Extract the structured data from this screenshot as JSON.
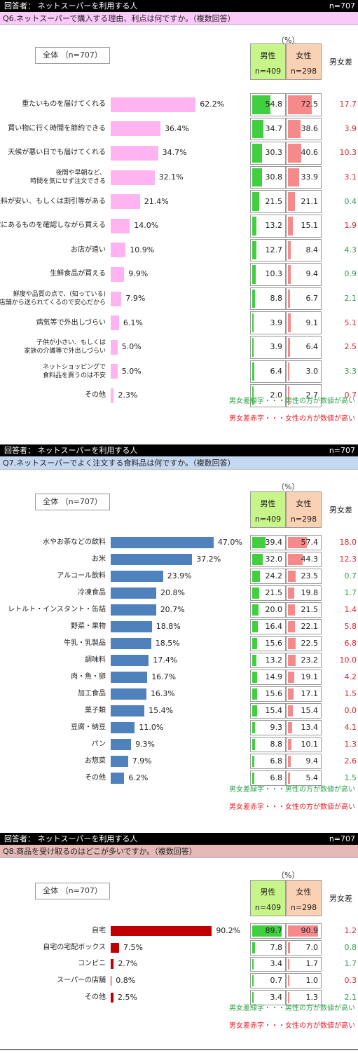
{
  "colors": {
    "male": "#3fcf3f",
    "female": "#f68a8a",
    "diff_green": "#2ea14a",
    "diff_red": "#e8202a"
  },
  "legend": {
    "green": "男女差緑字・・・男性の方が数値が高い",
    "red": "男女差赤字・・・女性の方が数値が高い"
  },
  "charts": [
    {
      "respondent": "回答者： ネットスーパーを利用する人",
      "n": "n=707",
      "question": "Q6.ネットスーパーで購入する理由、利点は何ですか。（複数回答）",
      "question_bg": "#f9c9f7",
      "bar_color": "#ffb3f0",
      "unit": "（%）",
      "total_label": "全体 （n=707）",
      "male_head": "男性",
      "male_n": "n=409",
      "female_head": "女性",
      "female_n": "n=298",
      "diff_head": "男女差"
    },
    {
      "respondent": "回答者： ネットスーパーを利用する人",
      "n": "n=707",
      "question": "Q7.ネットスーパーでよく注文する食料品は何ですか。（複数回答）",
      "question_bg": "#c5d8f1",
      "bar_color": "#4f81bd",
      "unit": "（%）",
      "total_label": "全体 （n=707）",
      "male_head": "男性",
      "male_n": "n=409",
      "female_head": "女性",
      "female_n": "n=298",
      "diff_head": "男女差"
    },
    {
      "respondent": "回答者： ネットスーパーを利用する人",
      "n": "n=707",
      "question": "Q8.商品を受け取るのはどこが多いですか。（複数回答）",
      "question_bg": "#e6b8b8",
      "bar_color": "#c00000",
      "unit": "（%）",
      "total_label": "全体 （n=707）",
      "male_head": "男性",
      "male_n": "n=409",
      "female_head": "女性",
      "female_n": "n=298",
      "diff_head": "男女差"
    }
  ],
  "chart_data": [
    {
      "type": "bar",
      "title": "Q6.ネットスーパーで購入する理由、利点は何ですか。（複数回答）",
      "categories": [
        "重たいものを届けてくれる",
        "買い物に行く時間を節約できる",
        "天候が悪い日でも届けてくれる",
        "夜間や早朝など、\n時間を気にせず注文できる",
        "送料が安い、もしくは割引等がある",
        "家にあるものを確認しながら買える",
        "お店が遠い",
        "生鮮食品が買える",
        "鮮度や品質の点で、(知っている)\n店舗から送られてくるので安心だから",
        "病気等で外出しづらい",
        "子供が小さい、もしくは\n家族の介護等で外出しづらい",
        "ネットショッピングで\n食料品を買うのは不安",
        "その他"
      ],
      "series": [
        {
          "name": "全体 （n=707）",
          "values": [
            62.2,
            36.4,
            34.7,
            32.1,
            21.4,
            14.0,
            10.9,
            9.9,
            7.9,
            6.1,
            5.0,
            5.0,
            2.3
          ]
        },
        {
          "name": "男性",
          "values": [
            54.8,
            34.7,
            30.3,
            30.8,
            21.5,
            13.2,
            12.7,
            10.3,
            8.8,
            3.9,
            3.9,
            6.4,
            2.0
          ]
        },
        {
          "name": "女性",
          "values": [
            72.5,
            38.6,
            40.6,
            33.9,
            21.1,
            15.1,
            8.4,
            9.4,
            6.7,
            9.1,
            6.4,
            3.0,
            2.7
          ]
        },
        {
          "name": "男女差",
          "values": [
            17.7,
            3.9,
            10.3,
            3.1,
            0.4,
            1.9,
            4.3,
            0.9,
            2.1,
            5.1,
            2.5,
            3.3,
            0.7
          ]
        }
      ],
      "diff_color": [
        "red",
        "red",
        "red",
        "red",
        "green",
        "red",
        "green",
        "green",
        "green",
        "red",
        "red",
        "green",
        "red"
      ]
    },
    {
      "type": "bar",
      "title": "Q7.ネットスーパーでよく注文する食料品は何ですか。（複数回答）",
      "categories": [
        "水やお茶などの飲料",
        "お米",
        "アルコール飲料",
        "冷凍食品",
        "レトルト・インスタント・缶詰",
        "野菜・果物",
        "牛乳・乳製品",
        "調味料",
        "肉・魚・卵",
        "加工食品",
        "菓子類",
        "豆腐・納豆",
        "パン",
        "お惣菜",
        "その他"
      ],
      "series": [
        {
          "name": "全体 （n=707）",
          "values": [
            47.0,
            37.2,
            23.9,
            20.8,
            20.7,
            18.8,
            18.5,
            17.4,
            16.7,
            16.3,
            15.4,
            11.0,
            9.3,
            7.9,
            6.2
          ]
        },
        {
          "name": "男性",
          "values": [
            39.4,
            32.0,
            24.2,
            21.5,
            20.0,
            16.4,
            15.6,
            13.2,
            14.9,
            15.6,
            15.4,
            9.3,
            8.8,
            6.8,
            6.8
          ]
        },
        {
          "name": "女性",
          "values": [
            57.4,
            44.3,
            23.5,
            19.8,
            21.5,
            22.1,
            22.5,
            23.2,
            19.1,
            17.1,
            15.4,
            13.4,
            10.1,
            9.4,
            5.4
          ]
        },
        {
          "name": "男女差",
          "values": [
            18.0,
            12.3,
            0.7,
            1.7,
            1.4,
            5.8,
            6.8,
            10.0,
            4.2,
            1.5,
            0.0,
            4.1,
            1.3,
            2.6,
            1.5
          ]
        }
      ],
      "diff_color": [
        "red",
        "red",
        "green",
        "green",
        "red",
        "red",
        "red",
        "red",
        "red",
        "red",
        "red",
        "red",
        "red",
        "red",
        "green"
      ]
    },
    {
      "type": "bar",
      "title": "Q8.商品を受け取るのはどこが多いですか。（複数回答）",
      "categories": [
        "自宅",
        "自宅の宅配ボックス",
        "コンビニ",
        "スーパーの店舗",
        "その他"
      ],
      "series": [
        {
          "name": "全体 （n=707）",
          "values": [
            90.2,
            7.5,
            2.7,
            0.8,
            2.5
          ]
        },
        {
          "name": "男性",
          "values": [
            89.7,
            7.8,
            3.4,
            0.7,
            3.4
          ]
        },
        {
          "name": "女性",
          "values": [
            90.9,
            7.0,
            1.7,
            1.0,
            1.3
          ]
        },
        {
          "name": "男女差",
          "values": [
            1.2,
            0.8,
            1.7,
            0.3,
            2.1
          ]
        }
      ],
      "diff_color": [
        "red",
        "green",
        "green",
        "red",
        "green"
      ]
    }
  ]
}
